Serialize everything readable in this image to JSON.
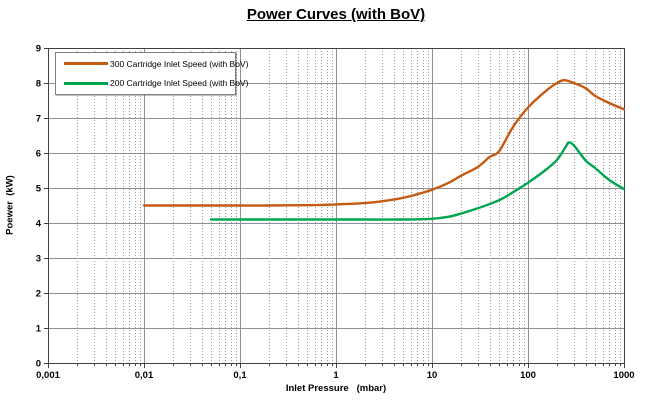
{
  "chart_data": {
    "type": "line",
    "title": "Power Curves (with BoV)",
    "xlabel": "Inlet Pressure   (mbar)",
    "ylabel": "Poewer  (kW)",
    "x_scale": "log",
    "xlim": [
      0.001,
      1000
    ],
    "ylim": [
      0,
      9
    ],
    "x_ticks": [
      0.001,
      0.01,
      0.1,
      1,
      10,
      100,
      1000
    ],
    "x_tick_labels": [
      "0,001",
      "0,01",
      "0,1",
      "1",
      "10",
      "100",
      "1000"
    ],
    "y_ticks": [
      0,
      1,
      2,
      3,
      4,
      5,
      6,
      7,
      8,
      9
    ],
    "grid": {
      "major": true,
      "minor_x": true,
      "minor_y": false
    },
    "legend_position": "top-left",
    "style": {
      "grid_major": "#909090",
      "grid_minor": "#999999",
      "border": "#404040",
      "axis": "#404040",
      "text": "#000000",
      "background": "#ffffff"
    },
    "series": [
      {
        "name": "300 Cartridge Inlet Speed (with BoV)",
        "color": "#C55A11",
        "points": [
          [
            0.01,
            4.5
          ],
          [
            0.02,
            4.5
          ],
          [
            0.05,
            4.5
          ],
          [
            0.1,
            4.5
          ],
          [
            0.2,
            4.5
          ],
          [
            0.5,
            4.51
          ],
          [
            1,
            4.53
          ],
          [
            2,
            4.57
          ],
          [
            3,
            4.62
          ],
          [
            5,
            4.72
          ],
          [
            7,
            4.82
          ],
          [
            10,
            4.95
          ],
          [
            15,
            5.15
          ],
          [
            20,
            5.35
          ],
          [
            30,
            5.6
          ],
          [
            40,
            5.89
          ],
          [
            50,
            6.05
          ],
          [
            70,
            6.75
          ],
          [
            100,
            7.3
          ],
          [
            150,
            7.75
          ],
          [
            200,
            8.0
          ],
          [
            240,
            8.08
          ],
          [
            300,
            8.0
          ],
          [
            400,
            7.85
          ],
          [
            500,
            7.63
          ],
          [
            700,
            7.43
          ],
          [
            1000,
            7.25
          ]
        ]
      },
      {
        "name": "200 Cartridge Inlet Speed (with BoV)",
        "color": "#00A550",
        "points": [
          [
            0.05,
            4.1
          ],
          [
            0.1,
            4.1
          ],
          [
            0.2,
            4.1
          ],
          [
            0.5,
            4.1
          ],
          [
            1,
            4.1
          ],
          [
            2,
            4.1
          ],
          [
            5,
            4.1
          ],
          [
            10,
            4.12
          ],
          [
            15,
            4.18
          ],
          [
            20,
            4.27
          ],
          [
            30,
            4.42
          ],
          [
            50,
            4.65
          ],
          [
            70,
            4.88
          ],
          [
            100,
            5.15
          ],
          [
            150,
            5.5
          ],
          [
            200,
            5.8
          ],
          [
            250,
            6.2
          ],
          [
            265,
            6.3
          ],
          [
            300,
            6.22
          ],
          [
            400,
            5.78
          ],
          [
            500,
            5.57
          ],
          [
            700,
            5.23
          ],
          [
            1000,
            4.97
          ]
        ]
      }
    ]
  }
}
